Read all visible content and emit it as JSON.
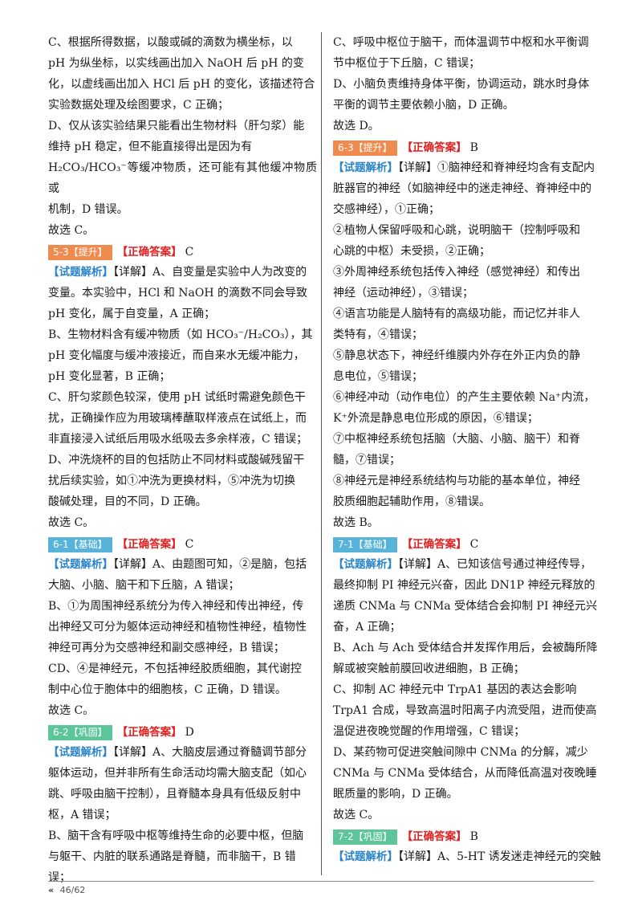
{
  "footer": {
    "chevron": "«",
    "page": "46/62"
  },
  "left": {
    "l01": "C、根据所得数据，以酸或碱的滴数为横坐标，以",
    "l02": "pH 为纵坐标，以实线画出加入 NaOH 后 pH 的变",
    "l03": "化，以虚线画出加入 HCl 后 pH 的变化，该描述符合",
    "l04": "实验数据处理及绘图要求，C 正确；",
    "l05": "D、仅从该实验结果只能看出生物材料（肝匀浆）能",
    "l06": "维持 pH 稳定，但不能直接得出是因为有",
    "l07": "H₂CO₃/HCO₃⁻等缓冲物质，还可能有其他缓冲物质或",
    "l08": "机制，D 错误。",
    "l09": "故选 C。",
    "h53_tag": "5-3【提升】",
    "h53_ans": "【正确答案】",
    "h53_val": "C",
    "jx53": "【试题解析】",
    "l10": "【详解】A、自变量是实验中人为改变的",
    "l11": "变量。本实验中，HCl 和 NaOH 的滴数不同会导致",
    "l12": "pH 变化，属于自变量，A 正确；",
    "l13": "B、生物材料含有缓冲物质（如 HCO₃⁻/H₂CO₃），其",
    "l14": "pH 变化幅度与缓冲液接近，而自来水无缓冲能力，",
    "l15": "pH 变化显著，B 正确；",
    "l16": "C、肝匀浆颜色较深，使用 pH 试纸时需避免颜色干",
    "l17": "扰，正确操作应为用玻璃棒蘸取样液点在试纸上，而",
    "l18": "非直接浸入试纸后用吸水纸吸去多余样液，C 错误；",
    "l19": "D、冲洗烧杯的目的包括防止不同材料或酸碱残留干",
    "l20": "扰后续实验，如①冲洗为更换材料，⑤冲洗为切换",
    "l21": "酸碱处理，目的不同，D 正确。",
    "l22": "故选 C。",
    "h61_tag": "6-1【基础】",
    "h61_ans": "【正确答案】",
    "h61_val": "C",
    "jx61": "【试题解析】",
    "l23": "【详解】A、由题图可知，②是脑，包括",
    "l24": "大脑、小脑、脑干和下丘脑，A 错误；",
    "l25": "B、①为周围神经系统分为传入神经和传出神经，传",
    "l26": "出神经又可分为躯体运动神经和植物性神经，植物性",
    "l27": "神经可再分为交感神经和副交感神经，B 错误；",
    "l28": "CD、④是神经元，不包括神经胶质细胞，其代谢控",
    "l29": "制中心位于胞体中的细胞核，C 正确，D 错误。",
    "l30": "故选 C。",
    "h62_tag": "6-2【巩固】",
    "h62_ans": "【正确答案】",
    "h62_val": "D",
    "jx62": "【试题解析】",
    "l31": "【详解】A、大脑皮层通过脊髓调节部分",
    "l32": "躯体运动，但并非所有生命活动均需大脑支配（如心",
    "l33": "跳、呼吸由脑干控制），且脊髓本身具有低级反射中",
    "l34": "枢，A 错误；",
    "l35": "B、脑干含有呼吸中枢等维持生命的必要中枢，但脑",
    "l36": "与躯干、内脏的联系通路是脊髓，而非脑干，B 错",
    "l37": "误；"
  },
  "right": {
    "r01": "C、呼吸中枢位于脑干，而体温调节中枢和水平衡调",
    "r02": "节中枢位于下丘脑，C 错误；",
    "r03": "D、小脑负责维持身体平衡，协调运动，跳水时身体",
    "r04": "平衡的调节主要依赖小脑，D 正确。",
    "r05": "故选 D。",
    "h63_tag": "6-3【提升】",
    "h63_ans": "【正确答案】",
    "h63_val": "B",
    "jx63": "【试题解析】",
    "r06": "【详解】①脑神经和脊神经均含有支配内",
    "r07": "脏器官的神经（如脑神经中的迷走神经、脊神经中的",
    "r08": "交感神经），①正确；",
    "r09": "②植物人保留呼吸和心跳，说明脑干（控制呼吸和",
    "r10": "心跳的中枢）未受损，②正确；",
    "r11": "③外周神经系统包括传入神经（感觉神经）和传出",
    "r12": "神经（运动神经），③错误；",
    "r13": "④语言功能是人脑特有的高级功能，而记忆并非人",
    "r14": "类特有，④错误；",
    "r15": "⑤静息状态下，神经纤维膜内外存在外正内负的静",
    "r16": "息电位，⑤错误；",
    "r17": "⑥神经冲动（动作电位）的产生主要依赖 Na⁺内流，",
    "r18": "K⁺外流是静息电位形成的原因，⑥错误；",
    "r19": "⑦中枢神经系统包括脑（大脑、小脑、脑干）和脊",
    "r20": "髓，⑦错误；",
    "r21": "⑧神经元是神经系统结构与功能的基本单位，神经",
    "r22": "胶质细胞起辅助作用，⑧错误。",
    "r23": "故选 B。",
    "h71_tag": "7-1【基础】",
    "h71_ans": "【正确答案】",
    "h71_val": "C",
    "jx71": "【试题解析】",
    "r24": "【详解】A、已知该信号通过神经传导，",
    "r25": "最终抑制 PI 神经元兴奋，因此 DN1P 神经元释放的",
    "r26": "递质 CNMa 与 CNMa 受体结合会抑制 PI 神经元兴",
    "r27": "奋，A 正确；",
    "r28": "B、Ach 与 Ach 受体结合并发挥作用后，会被酶所降",
    "r29": "解或被突触前膜回收进细胞，B 正确；",
    "r30": "C、抑制 AC 神经元中 TrpA1 基因的表达会影响",
    "r31": "TrpA1 合成，导致高温时阳离子内流受阻，进而使高",
    "r32": "温促进夜晚觉醒的作用增强，C 错误；",
    "r33": "D、某药物可促进突触间隙中 CNMa 的分解，减少",
    "r34": "CNMa 与 CNMa 受体结合，从而降低高温对夜晚睡",
    "r35": "眠质量的影响，D 正确。",
    "r36": "故选 C。",
    "h72_tag": "7-2【巩固】",
    "h72_ans": "【正确答案】",
    "h72_val": "B",
    "jx72": "【试题解析】",
    "r37": "【详解】A、5-HT 诱发迷走神经元的突触"
  },
  "colors": {
    "tag_basic": "#57b3d9",
    "tag_advanced": "#f08b50",
    "tag_consolidate": "#5cc59a",
    "answer": "#e02020",
    "analysis": "#2a84c9"
  }
}
